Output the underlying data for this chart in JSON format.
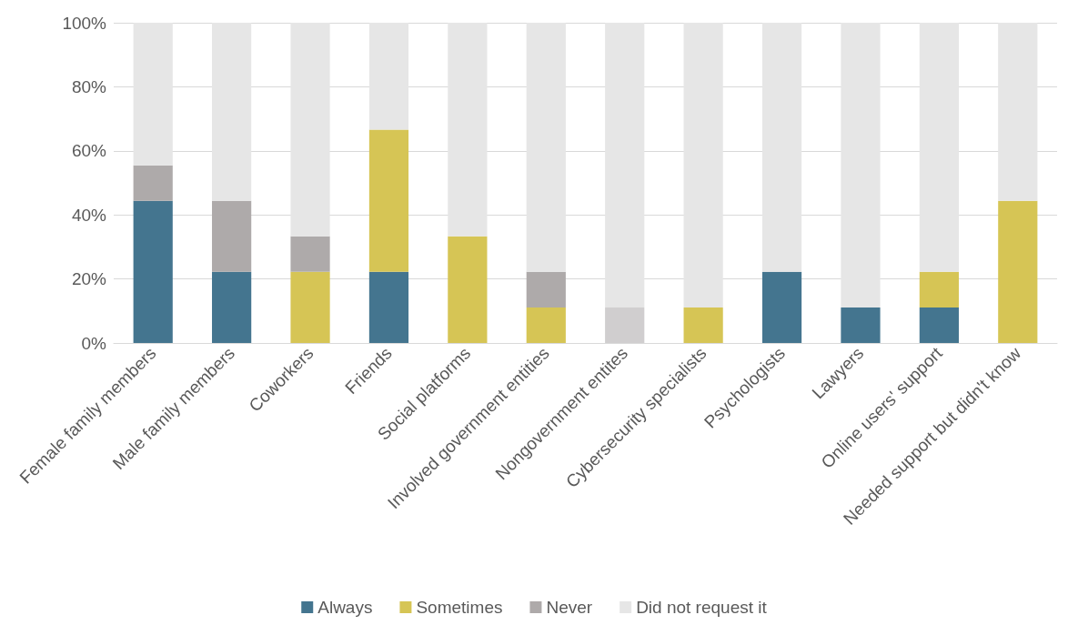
{
  "chart_data": {
    "type": "bar",
    "stacked": true,
    "categories": [
      "Female family members",
      "Male family members",
      "Coworkers",
      "Friends",
      "Social platforms",
      "Involved government entities",
      "Nongovernment entites",
      "Cybersecurity specialists",
      "Psychologists",
      "Lawyers",
      "Online users' support",
      "Needed support but didn't know"
    ],
    "series": [
      {
        "name": "Always",
        "color": "#44758f",
        "values": [
          44.4,
          22.2,
          0,
          22.2,
          0,
          0,
          0,
          0,
          22.2,
          11.1,
          11.1,
          0
        ]
      },
      {
        "name": "Sometimes",
        "color": "#d6c555",
        "values": [
          0,
          0,
          22.2,
          44.4,
          33.3,
          11.1,
          0,
          11.1,
          0,
          0,
          11.1,
          44.4
        ]
      },
      {
        "name": "Never",
        "color": "#aeaaaa",
        "colors": [
          "#aeaaaa",
          "#aeaaaa",
          "#aeaaaa",
          "#aeaaaa",
          "#aeaaaa",
          "#aeaaaa",
          "#d0cecf",
          "#aeaaaa",
          "#aeaaaa",
          "#aeaaaa",
          "#aeaaaa",
          "#aeaaaa"
        ],
        "values": [
          11.1,
          22.2,
          11.1,
          0,
          0,
          11.1,
          11.1,
          0,
          0,
          0,
          0,
          0
        ]
      },
      {
        "name": "Did not request it",
        "color": "#e6e6e6",
        "values": [
          44.5,
          55.6,
          66.7,
          33.4,
          66.7,
          77.8,
          88.9,
          88.9,
          77.8,
          88.9,
          77.8,
          55.6
        ]
      }
    ],
    "ylim": [
      0,
      100
    ],
    "yticks": [
      {
        "value": 0,
        "label": "0%"
      },
      {
        "value": 20,
        "label": "20%"
      },
      {
        "value": 40,
        "label": "40%"
      },
      {
        "value": 60,
        "label": "60%"
      },
      {
        "value": 80,
        "label": "80%"
      },
      {
        "value": 100,
        "label": "100%"
      }
    ],
    "grid": "y",
    "legend": "bottom"
  }
}
